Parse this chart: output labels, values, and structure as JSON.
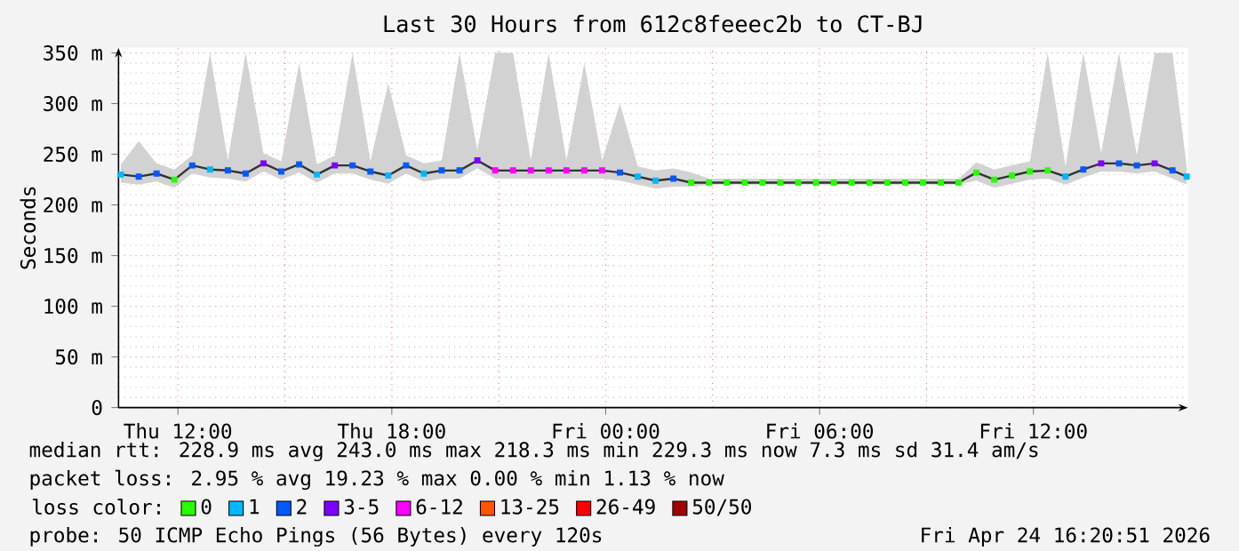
{
  "chart_data": {
    "type": "line",
    "title": "Last 30 Hours from 612c8feeec2b to CT-BJ",
    "ylabel": "Seconds",
    "legend_title": "loss color:",
    "annotations": [
      "median rtt:  228.9 ms avg  243.0 ms max  218.3 ms min  229.3 ms now  7.3 ms sd  31.4   am/s",
      "packet loss: 2.95 % avg  19.23 % max  0.00 % min  1.13 % now",
      "probe:        50 ICMP Echo Pings (56 Bytes) every 120s",
      "Fri Apr 24 16:20:51 2026"
    ],
    "xlim": [
      "2026-04-23T10:20",
      "2026-04-24T16:20"
    ],
    "ylim": [
      0,
      355
    ],
    "xticks": [
      {
        "value": "2026-04-23T12:00",
        "label": "Thu 12:00"
      },
      {
        "value": "2026-04-23T18:00",
        "label": "Thu 18:00"
      },
      {
        "value": "2026-04-24T00:00",
        "label": "Fri 00:00"
      },
      {
        "value": "2026-04-24T06:00",
        "label": "Fri 06:00"
      },
      {
        "value": "2026-04-24T12:00",
        "label": "Fri 12:00"
      }
    ],
    "yticks": [
      0,
      {
        "value": 50,
        "label": "50 m"
      },
      {
        "value": 100,
        "label": "100 m"
      },
      {
        "value": 150,
        "label": "150 m"
      },
      {
        "value": 200,
        "label": "200 m"
      },
      {
        "value": 250,
        "label": "250 m"
      },
      {
        "value": 300,
        "label": "300 m"
      },
      {
        "value": 350,
        "label": "350 m"
      }
    ],
    "grid": true,
    "legend": "bottom",
    "x": [
      "2026-04-23T10:24",
      "2026-04-23T10:54",
      "2026-04-23T11:24",
      "2026-04-23T11:54",
      "2026-04-23T12:24",
      "2026-04-23T12:54",
      "2026-04-23T13:24",
      "2026-04-23T13:54",
      "2026-04-23T14:24",
      "2026-04-23T14:54",
      "2026-04-23T15:24",
      "2026-04-23T15:54",
      "2026-04-23T16:24",
      "2026-04-23T16:54",
      "2026-04-23T17:24",
      "2026-04-23T17:54",
      "2026-04-23T18:24",
      "2026-04-23T18:54",
      "2026-04-23T19:24",
      "2026-04-23T19:54",
      "2026-04-23T20:24",
      "2026-04-23T20:54",
      "2026-04-23T21:24",
      "2026-04-23T21:54",
      "2026-04-23T22:24",
      "2026-04-23T22:54",
      "2026-04-23T23:24",
      "2026-04-23T23:54",
      "2026-04-24T00:24",
      "2026-04-24T00:54",
      "2026-04-24T01:24",
      "2026-04-24T01:54",
      "2026-04-24T02:24",
      "2026-04-24T02:54",
      "2026-04-24T03:24",
      "2026-04-24T03:54",
      "2026-04-24T04:24",
      "2026-04-24T04:54",
      "2026-04-24T05:24",
      "2026-04-24T05:54",
      "2026-04-24T06:24",
      "2026-04-24T06:54",
      "2026-04-24T07:24",
      "2026-04-24T07:54",
      "2026-04-24T08:24",
      "2026-04-24T08:54",
      "2026-04-24T09:24",
      "2026-04-24T09:54",
      "2026-04-24T10:24",
      "2026-04-24T10:54",
      "2026-04-24T11:24",
      "2026-04-24T11:54",
      "2026-04-24T12:24",
      "2026-04-24T12:54",
      "2026-04-24T13:24",
      "2026-04-24T13:54",
      "2026-04-24T14:24",
      "2026-04-24T14:54",
      "2026-04-24T15:24",
      "2026-04-24T15:54",
      "2026-04-24T16:18"
    ],
    "series": [
      {
        "color": "#333333",
        "values": [
          230,
          228,
          231,
          225,
          239,
          235,
          234,
          231,
          241,
          233,
          240,
          230,
          239,
          239,
          233,
          229,
          239,
          231,
          234,
          234,
          244,
          234,
          234,
          234,
          234,
          234,
          234,
          234,
          232,
          228,
          224,
          226,
          222,
          222,
          222,
          222,
          222,
          222,
          222,
          222,
          222,
          222,
          222,
          222,
          222,
          222,
          222,
          222,
          232,
          225,
          229,
          233,
          234,
          228,
          235,
          241,
          241,
          239,
          241,
          234,
          228
        ],
        "lower": [
          222,
          220,
          223,
          217,
          231,
          227,
          226,
          223,
          233,
          225,
          232,
          222,
          231,
          231,
          225,
          221,
          231,
          223,
          226,
          226,
          236,
          226,
          226,
          226,
          226,
          226,
          226,
          226,
          224,
          220,
          216,
          218,
          218,
          220,
          220,
          220,
          220,
          220,
          220,
          220,
          220,
          220,
          220,
          220,
          220,
          220,
          220,
          220,
          224,
          217,
          221,
          225,
          226,
          220,
          227,
          233,
          233,
          231,
          233,
          226,
          220
        ],
        "upper": [
          240,
          263,
          241,
          235,
          249,
          350,
          244,
          350,
          251,
          243,
          340,
          240,
          249,
          350,
          243,
          320,
          249,
          241,
          244,
          350,
          254,
          350,
          350,
          244,
          350,
          244,
          340,
          244,
          300,
          238,
          234,
          236,
          232,
          226,
          226,
          226,
          226,
          226,
          226,
          226,
          226,
          226,
          226,
          226,
          226,
          226,
          226,
          226,
          242,
          235,
          239,
          243,
          350,
          238,
          350,
          251,
          350,
          249,
          350,
          350,
          238
        ]
      },
      {
        "name": "0",
        "type": "scatter",
        "marker": "square",
        "color": "#26ff00",
        "x": [
          "2026-04-23T11:54",
          "2026-04-24T02:24",
          "2026-04-24T02:54",
          "2026-04-24T03:24",
          "2026-04-24T03:54",
          "2026-04-24T04:24",
          "2026-04-24T04:54",
          "2026-04-24T05:24",
          "2026-04-24T05:54",
          "2026-04-24T06:24",
          "2026-04-24T06:54",
          "2026-04-24T07:24",
          "2026-04-24T07:54",
          "2026-04-24T08:24",
          "2026-04-24T08:54",
          "2026-04-24T09:24",
          "2026-04-24T09:54",
          "2026-04-24T10:24",
          "2026-04-24T10:54",
          "2026-04-24T11:24",
          "2026-04-24T11:54",
          "2026-04-24T12:24"
        ],
        "values": [
          225,
          222,
          222,
          222,
          222,
          222,
          222,
          222,
          222,
          222,
          222,
          222,
          222,
          222,
          222,
          222,
          222,
          232,
          225,
          229,
          233,
          234
        ]
      },
      {
        "name": "1",
        "type": "scatter",
        "marker": "square",
        "color": "#00b8ff",
        "x": [
          "2026-04-23T10:24",
          "2026-04-23T12:54",
          "2026-04-23T15:54",
          "2026-04-23T17:54",
          "2026-04-23T18:54",
          "2026-04-24T00:54",
          "2026-04-24T01:24",
          "2026-04-24T12:54",
          "2026-04-24T16:18"
        ],
        "values": [
          230,
          235,
          230,
          229,
          231,
          228,
          224,
          228,
          228
        ]
      },
      {
        "name": "2",
        "type": "scatter",
        "marker": "square",
        "color": "#0059ff",
        "x": [
          "2026-04-23T10:54",
          "2026-04-23T11:24",
          "2026-04-23T12:24",
          "2026-04-23T13:24",
          "2026-04-23T13:54",
          "2026-04-23T14:54",
          "2026-04-23T15:24",
          "2026-04-23T16:54",
          "2026-04-23T17:24",
          "2026-04-23T18:24",
          "2026-04-23T19:24",
          "2026-04-23T19:54",
          "2026-04-24T00:24",
          "2026-04-24T01:54",
          "2026-04-24T13:24",
          "2026-04-24T14:24",
          "2026-04-24T14:54",
          "2026-04-24T15:54"
        ],
        "values": [
          228,
          231,
          239,
          234,
          231,
          233,
          240,
          239,
          233,
          239,
          234,
          234,
          232,
          226,
          235,
          241,
          239,
          234
        ]
      },
      {
        "name": "3-5",
        "type": "scatter",
        "marker": "square",
        "color": "#7e00ff",
        "x": [
          "2026-04-23T14:24",
          "2026-04-23T16:24",
          "2026-04-23T20:24",
          "2026-04-24T13:54",
          "2026-04-24T15:24"
        ],
        "values": [
          241,
          239,
          244,
          241,
          241
        ]
      },
      {
        "name": "6-12",
        "type": "scatter",
        "marker": "square",
        "color": "#ff00ff",
        "x": [
          "2026-04-23T20:54",
          "2026-04-23T21:24",
          "2026-04-23T21:54",
          "2026-04-23T22:24",
          "2026-04-23T22:54",
          "2026-04-23T23:24",
          "2026-04-23T23:54"
        ],
        "values": [
          234,
          234,
          234,
          234,
          234,
          234,
          234
        ]
      },
      {
        "name": "13-25",
        "type": "scatter",
        "marker": "square",
        "color": "#ff5500",
        "values": [
          null,
          null,
          null,
          null,
          null,
          null,
          null,
          null,
          null,
          null,
          null,
          null,
          null,
          null,
          null,
          null,
          null,
          null,
          null,
          null,
          null,
          null,
          null,
          null,
          null,
          null,
          null,
          null,
          null,
          null,
          null,
          null,
          null,
          null,
          null,
          null,
          null,
          null,
          null,
          null,
          null,
          null,
          null,
          null,
          null,
          null,
          null,
          null,
          null,
          null,
          null,
          null,
          null,
          null,
          null,
          null,
          null,
          null,
          null,
          null,
          null
        ]
      },
      {
        "name": "26-49",
        "type": "scatter",
        "marker": "square",
        "color": "#ff0000",
        "values": [
          null,
          null,
          null,
          null,
          null,
          null,
          null,
          null,
          null,
          null,
          null,
          null,
          null,
          null,
          null,
          null,
          null,
          null,
          null,
          null,
          null,
          null,
          null,
          null,
          null,
          null,
          null,
          null,
          null,
          null,
          null,
          null,
          null,
          null,
          null,
          null,
          null,
          null,
          null,
          null,
          null,
          null,
          null,
          null,
          null,
          null,
          null,
          null,
          null,
          null,
          null,
          null,
          null,
          null,
          null,
          null,
          null,
          null,
          null,
          null,
          null
        ]
      },
      {
        "name": "50/50",
        "type": "scatter",
        "marker": "square",
        "color": "#a10000",
        "values": [
          null,
          null,
          null,
          null,
          null,
          null,
          null,
          null,
          null,
          null,
          null,
          null,
          null,
          null,
          null,
          null,
          null,
          null,
          null,
          null,
          null,
          null,
          null,
          null,
          null,
          null,
          null,
          null,
          null,
          null,
          null,
          null,
          null,
          null,
          null,
          null,
          null,
          null,
          null,
          null,
          null,
          null,
          null,
          null,
          null,
          null,
          null,
          null,
          null,
          null,
          null,
          null,
          null,
          null,
          null,
          null,
          null,
          null,
          null,
          null,
          null
        ]
      }
    ]
  }
}
